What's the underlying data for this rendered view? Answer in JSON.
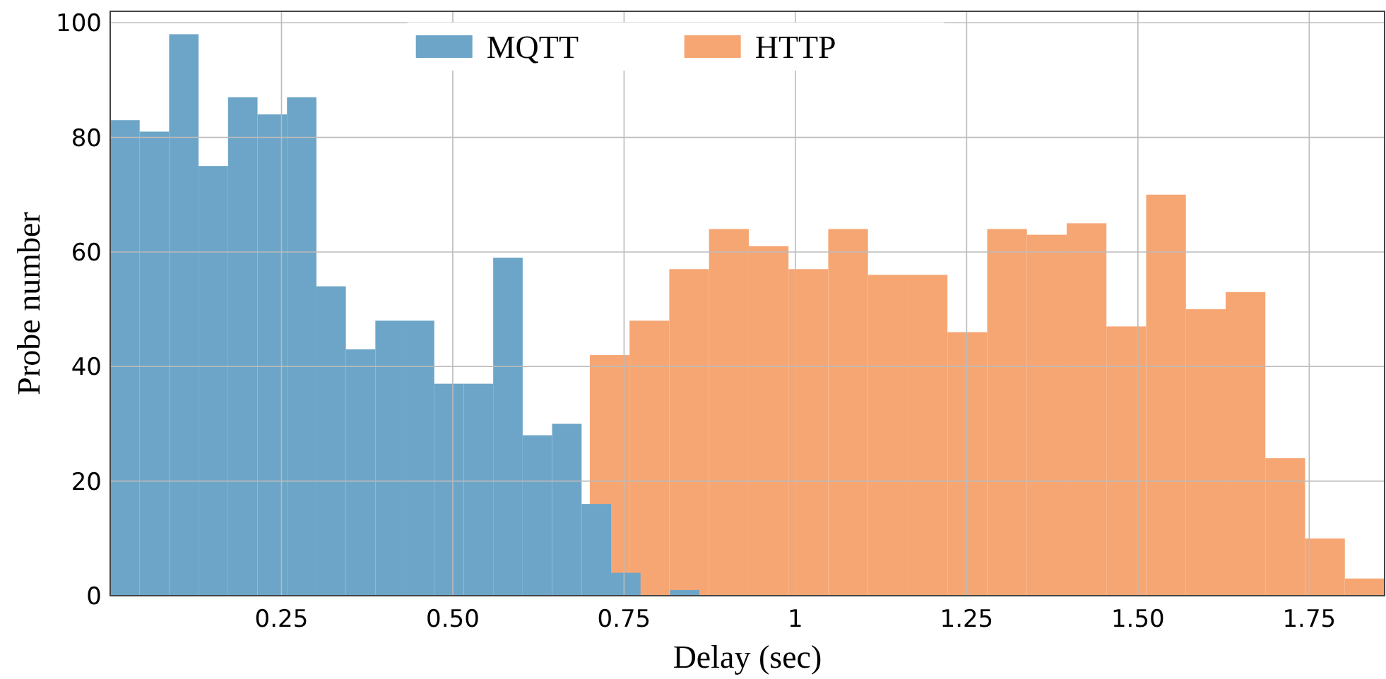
{
  "chart_data": {
    "type": "bar",
    "xlabel": "Delay (sec)",
    "ylabel": "Probe number",
    "xlim": [
      0,
      1.86
    ],
    "ylim": [
      0,
      102
    ],
    "xticks": [
      0.25,
      {
        "value": 0.5,
        "label": "0.50"
      },
      0.75,
      1,
      1.25,
      {
        "value": 1.5,
        "label": "1.50"
      },
      1.75
    ],
    "yticks": [
      0,
      20,
      40,
      60,
      80,
      100
    ],
    "grid": true,
    "legend": "top",
    "series": [
      {
        "name": "MQTT",
        "color": "#6ca5c7",
        "x": [
          0.0215,
          0.0645,
          0.1075,
          0.1505,
          0.1935,
          0.2365,
          0.2795,
          0.3225,
          0.3655,
          0.4085,
          0.4515,
          0.4945,
          0.5375,
          0.5805,
          0.6235,
          0.6665,
          0.7095,
          0.7525,
          0.7955,
          0.8385
        ],
        "values": [
          83,
          81,
          98,
          75,
          87,
          84,
          87,
          54,
          43,
          48,
          48,
          37,
          37,
          59,
          28,
          30,
          16,
          4,
          0,
          1
        ]
      },
      {
        "name": "HTTP",
        "color": "#f6a673",
        "x": [
          0.729,
          0.787,
          0.845,
          0.903,
          0.961,
          1.019,
          1.077,
          1.135,
          1.193,
          1.251,
          1.309,
          1.367,
          1.425,
          1.483,
          1.541,
          1.599,
          1.657,
          1.715,
          1.773,
          1.831
        ],
        "values": [
          42,
          48,
          57,
          64,
          61,
          57,
          64,
          56,
          56,
          46,
          64,
          63,
          65,
          47,
          70,
          50,
          53,
          24,
          10,
          3
        ]
      }
    ]
  }
}
